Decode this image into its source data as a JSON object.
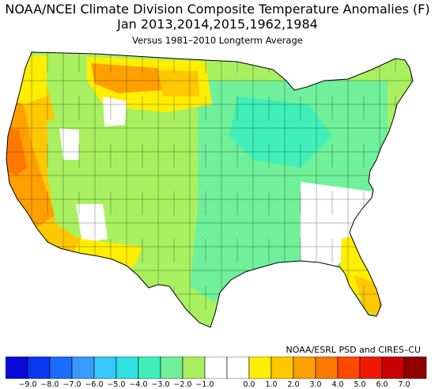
{
  "header": {
    "title": "NOAA/NCEI Climate Division Composite Temperature Anomalies (F)",
    "subtitle": "Jan   2013,2014,2015,1962,1984",
    "caption": "Versus 1981–2010 Longterm Average"
  },
  "credit": "NOAA/ESRL PSD and CIRES–CU",
  "legend": {
    "colors": [
      "#0a0ad8",
      "#0a38f0",
      "#1a6cfc",
      "#3a9afc",
      "#38c8fc",
      "#30e0e0",
      "#40f0b8",
      "#70f09a",
      "#a8f060",
      "#ffffff",
      "#ffffff",
      "#ffee00",
      "#ffc800",
      "#ffa000",
      "#ff7800",
      "#ff4800",
      "#f01800",
      "#c80000",
      "#900000"
    ],
    "ticks": [
      "−9.0",
      "−8.0",
      "−7.0",
      "−6.0",
      "−5.0",
      "−4.0",
      "−3.0",
      "−2.0",
      "−1.0",
      "0.0",
      "1.0",
      "2.0",
      "3.0",
      "4.0",
      "5.0",
      "6.0",
      "7.0"
    ]
  }
}
